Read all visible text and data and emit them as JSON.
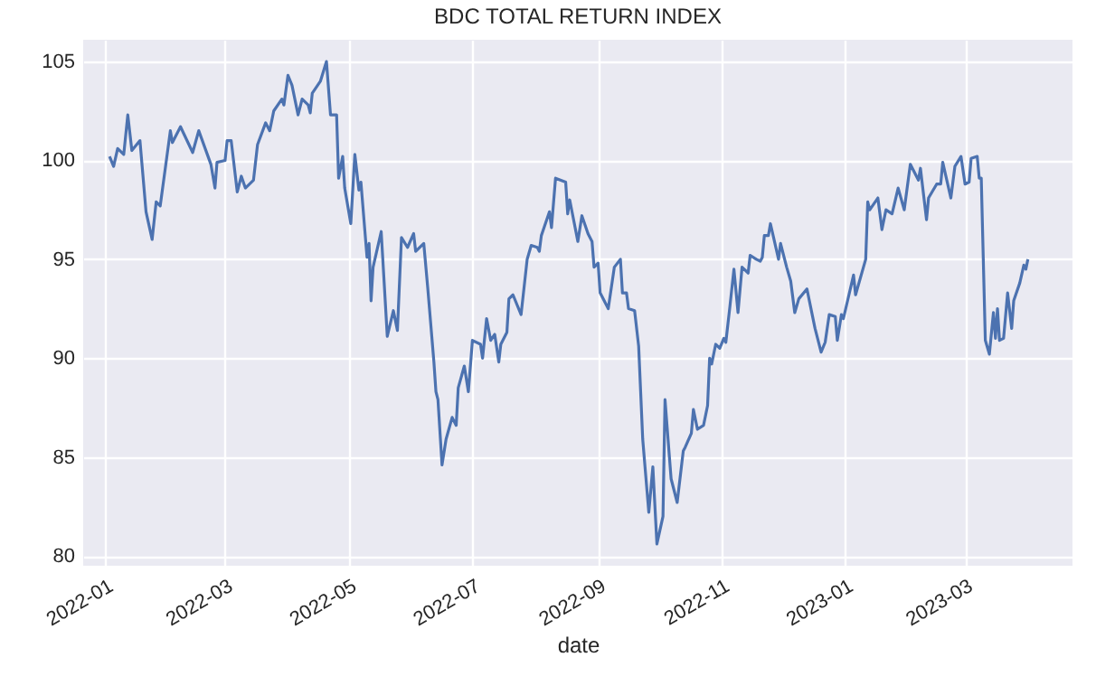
{
  "chart_data": {
    "type": "line",
    "title": "BDC TOTAL RETURN INDEX",
    "xlabel": "date",
    "x": [
      "2022-01-03",
      "2022-01-05",
      "2022-01-07",
      "2022-01-10",
      "2022-01-12",
      "2022-01-14",
      "2022-01-18",
      "2022-01-21",
      "2022-01-24",
      "2022-01-26",
      "2022-01-28",
      "2022-02-02",
      "2022-02-03",
      "2022-02-07",
      "2022-02-13",
      "2022-02-16",
      "2022-02-22",
      "2022-02-24",
      "2022-02-25",
      "2022-03-01",
      "2022-03-02",
      "2022-03-04",
      "2022-03-07",
      "2022-03-09",
      "2022-03-11",
      "2022-03-15",
      "2022-03-17",
      "2022-03-21",
      "2022-03-23",
      "2022-03-25",
      "2022-03-29",
      "2022-03-30",
      "2022-04-01",
      "2022-04-03",
      "2022-04-06",
      "2022-04-08",
      "2022-04-11",
      "2022-04-12",
      "2022-04-13",
      "2022-04-17",
      "2022-04-20",
      "2022-04-22",
      "2022-04-25",
      "2022-04-26",
      "2022-04-28",
      "2022-04-29",
      "2022-05-02",
      "2022-05-04",
      "2022-05-06",
      "2022-05-07",
      "2022-05-10",
      "2022-05-11",
      "2022-05-12",
      "2022-05-13",
      "2022-05-17",
      "2022-05-20",
      "2022-05-23",
      "2022-05-25",
      "2022-05-27",
      "2022-05-30",
      "2022-06-02",
      "2022-06-03",
      "2022-06-07",
      "2022-06-09",
      "2022-06-12",
      "2022-06-13",
      "2022-06-14",
      "2022-06-16",
      "2022-06-18",
      "2022-06-21",
      "2022-06-23",
      "2022-06-24",
      "2022-06-27",
      "2022-06-29",
      "2022-07-01",
      "2022-07-05",
      "2022-07-06",
      "2022-07-08",
      "2022-07-10",
      "2022-07-12",
      "2022-07-14",
      "2022-07-15",
      "2022-07-18",
      "2022-07-19",
      "2022-07-21",
      "2022-07-25",
      "2022-07-28",
      "2022-07-30",
      "2022-08-02",
      "2022-08-03",
      "2022-08-04",
      "2022-08-08",
      "2022-08-09",
      "2022-08-11",
      "2022-08-16",
      "2022-08-17",
      "2022-08-18",
      "2022-08-22",
      "2022-08-24",
      "2022-08-27",
      "2022-08-29",
      "2022-08-30",
      "2022-09-01",
      "2022-09-02",
      "2022-09-06",
      "2022-09-09",
      "2022-09-12",
      "2022-09-13",
      "2022-09-15",
      "2022-09-16",
      "2022-09-19",
      "2022-09-21",
      "2022-09-23",
      "2022-09-26",
      "2022-09-28",
      "2022-09-30",
      "2022-10-03",
      "2022-10-04",
      "2022-10-07",
      "2022-10-10",
      "2022-10-13",
      "2022-10-14",
      "2022-10-17",
      "2022-10-18",
      "2022-10-20",
      "2022-10-23",
      "2022-10-25",
      "2022-10-26",
      "2022-10-27",
      "2022-10-29",
      "2022-10-31",
      "2022-11-02",
      "2022-11-03",
      "2022-11-05",
      "2022-11-07",
      "2022-11-09",
      "2022-11-11",
      "2022-11-14",
      "2022-11-15",
      "2022-11-18",
      "2022-11-20",
      "2022-11-21",
      "2022-11-22",
      "2022-11-24",
      "2022-11-25",
      "2022-11-29",
      "2022-11-30",
      "2022-12-03",
      "2022-12-05",
      "2022-12-07",
      "2022-12-09",
      "2022-12-13",
      "2022-12-17",
      "2022-12-20",
      "2022-12-22",
      "2022-12-24",
      "2022-12-27",
      "2022-12-28",
      "2022-12-30",
      "2022-12-31",
      "2023-01-05",
      "2023-01-06",
      "2023-01-11",
      "2023-01-12",
      "2023-01-13",
      "2023-01-17",
      "2023-01-19",
      "2023-01-21",
      "2023-01-24",
      "2023-01-27",
      "2023-01-30",
      "2023-02-02",
      "2023-02-06",
      "2023-02-07",
      "2023-02-10",
      "2023-02-11",
      "2023-02-15",
      "2023-02-17",
      "2023-02-18",
      "2023-02-22",
      "2023-02-24",
      "2023-02-27",
      "2023-03-01",
      "2023-03-03",
      "2023-03-04",
      "2023-03-07",
      "2023-03-08",
      "2023-03-09",
      "2023-03-11",
      "2023-03-13",
      "2023-03-15",
      "2023-03-16",
      "2023-03-17",
      "2023-03-18",
      "2023-03-20",
      "2023-03-22",
      "2023-03-24",
      "2023-03-25",
      "2023-03-28",
      "2023-03-30",
      "2023-03-31",
      "2023-04-01"
    ],
    "series": [
      {
        "color": "#4c72b0",
        "values": [
          100.2,
          99.7,
          100.6,
          100.3,
          102.3,
          100.5,
          101.0,
          97.4,
          96.0,
          97.9,
          97.7,
          101.5,
          100.9,
          101.7,
          100.4,
          101.5,
          99.8,
          98.6,
          99.9,
          100.0,
          101.0,
          101.0,
          98.4,
          99.2,
          98.6,
          99.0,
          100.8,
          101.9,
          101.5,
          102.5,
          103.1,
          102.8,
          104.3,
          103.8,
          102.3,
          103.1,
          102.8,
          102.4,
          103.4,
          104.0,
          105.0,
          102.3,
          102.3,
          99.1,
          100.2,
          98.6,
          96.8,
          100.3,
          98.5,
          98.9,
          95.1,
          95.8,
          92.9,
          94.6,
          96.4,
          91.1,
          92.4,
          91.4,
          96.1,
          95.6,
          96.3,
          95.4,
          95.8,
          93.5,
          89.8,
          88.3,
          87.9,
          84.6,
          85.9,
          87.0,
          86.6,
          88.5,
          89.6,
          88.3,
          90.9,
          90.7,
          90.0,
          92.0,
          90.9,
          91.2,
          89.8,
          90.7,
          91.3,
          93.0,
          93.2,
          92.2,
          95.0,
          95.7,
          95.6,
          95.4,
          96.2,
          97.4,
          96.6,
          99.1,
          98.9,
          97.3,
          98.0,
          95.9,
          97.2,
          96.3,
          95.9,
          94.6,
          94.8,
          93.3,
          92.5,
          94.6,
          95.0,
          93.3,
          93.3,
          92.5,
          92.4,
          90.6,
          85.9,
          82.2,
          84.5,
          80.6,
          82.0,
          87.9,
          83.9,
          82.7,
          85.3,
          85.5,
          86.2,
          87.4,
          86.4,
          86.6,
          87.6,
          90.0,
          89.7,
          90.7,
          90.5,
          91.0,
          90.8,
          92.6,
          94.5,
          92.3,
          94.6,
          94.3,
          95.2,
          95.0,
          94.9,
          95.1,
          96.2,
          96.2,
          96.8,
          95.0,
          95.8,
          94.6,
          93.9,
          92.3,
          93.0,
          93.5,
          91.5,
          90.3,
          90.8,
          92.2,
          92.1,
          90.9,
          92.2,
          92.0,
          94.2,
          93.2,
          95.0,
          97.9,
          97.5,
          98.1,
          96.5,
          97.5,
          97.3,
          98.6,
          97.5,
          99.8,
          99.0,
          99.6,
          97.0,
          98.1,
          98.8,
          98.8,
          99.9,
          98.1,
          99.7,
          100.2,
          98.8,
          98.9,
          100.1,
          100.2,
          99.1,
          99.1,
          90.9,
          90.2,
          92.3,
          91.0,
          92.5,
          90.9,
          91.0,
          93.3,
          91.5,
          92.9,
          93.8,
          94.7,
          94.5,
          95.0
        ]
      }
    ],
    "xlim": [
      "2021-12-21",
      "2023-04-23"
    ],
    "xticks": [
      "2022-01",
      "2022-03",
      "2022-05",
      "2022-07",
      "2022-09",
      "2022-11",
      "2023-01",
      "2023-03"
    ],
    "ylim": [
      79.5,
      106.1
    ],
    "yticks": [
      80,
      85,
      90,
      95,
      100,
      105
    ],
    "grid": true
  }
}
